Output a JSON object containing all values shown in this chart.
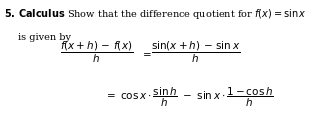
{
  "fig_width": 3.25,
  "fig_height": 1.21,
  "dpi": 100,
  "background_color": "#ffffff",
  "line1_num": "5",
  "line1_bold_word": "Calculus",
  "line1_rest": "  Show that the difference quotient for $f(x) = \\sin x$",
  "line2": "is given by",
  "eq1_lhs": "$\\dfrac{f(x + h) - f(x)}{h}$",
  "eq1_eq": "$=$",
  "eq1_rhs": "$\\dfrac{\\sin(x + h) - \\sin x}{h}$",
  "eq2_rhs": "$= \\cos x \\cdot \\dfrac{\\sin h}{h} - \\sin x \\cdot \\dfrac{1 - \\cos h}{h}$",
  "fs_header": 7.0,
  "fs_math": 7.5,
  "text_color": "#000000"
}
